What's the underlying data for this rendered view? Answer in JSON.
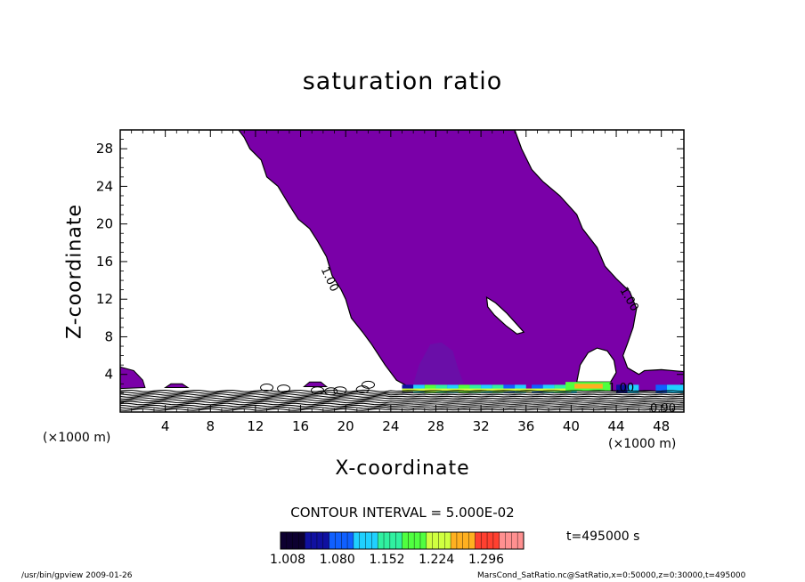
{
  "chart_data": {
    "type": "contour",
    "title": "saturation ratio",
    "xlabel": "X-coordinate",
    "ylabel": "Z-coordinate",
    "x_unit": "(×1000 m)",
    "xlim": [
      0,
      50
    ],
    "ylim": [
      0,
      30
    ],
    "x_ticks": [
      4,
      8,
      12,
      16,
      20,
      24,
      28,
      32,
      36,
      40,
      44,
      48
    ],
    "y_ticks": [
      4,
      8,
      12,
      16,
      20,
      24,
      28
    ],
    "contour_labels": [
      "1.00",
      "1.00",
      "1.00",
      "0.90"
    ],
    "contour_interval": "CONTOUR INTERVAL = 5.000E-02",
    "colorbar": {
      "labels": [
        "1.008",
        "1.080",
        "1.152",
        "1.224",
        "1.296"
      ],
      "min": 1.008,
      "max": 1.296,
      "colormap": [
        "#0d0030",
        "#1010a0",
        "#1060ff",
        "#20d0ff",
        "#30f0a0",
        "#50ff40",
        "#d0ff40",
        "#ffb020",
        "#ff4030",
        "#ff9090"
      ]
    },
    "fill_color": "#7a00a8",
    "time_label": "t=495000 s"
  },
  "footer": {
    "left": "/usr/bin/gpview   2009-01-26",
    "right": "MarsCond_SatRatio.nc@SatRatio,x=0:50000,z=0:30000,t=495000"
  }
}
